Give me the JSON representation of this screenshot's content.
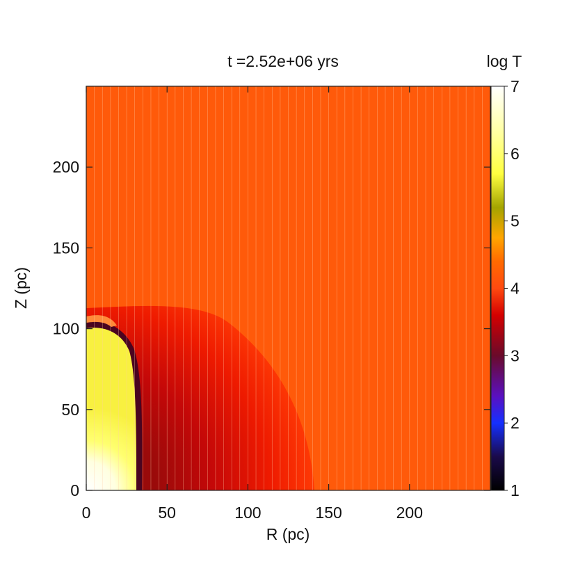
{
  "chart_data": {
    "type": "heatmap",
    "title": "t =2.52e+06 yrs",
    "xlabel": "R (pc)",
    "ylabel": "Z (pc)",
    "xlim": [
      0,
      250
    ],
    "ylim": [
      0,
      250
    ],
    "xticks": [
      0,
      50,
      100,
      150,
      200
    ],
    "yticks": [
      0,
      50,
      100,
      150,
      200
    ],
    "colorbar": {
      "label": "log T",
      "range": [
        1,
        7
      ],
      "ticks": [
        1,
        2,
        3,
        4,
        5,
        6,
        7
      ],
      "colormap": [
        {
          "v": 1.0,
          "color": "#000000"
        },
        {
          "v": 1.5,
          "color": "#1a0a4a"
        },
        {
          "v": 2.0,
          "color": "#1530ff"
        },
        {
          "v": 2.4,
          "color": "#5a10c0"
        },
        {
          "v": 3.0,
          "color": "#6a0a2a"
        },
        {
          "v": 3.6,
          "color": "#d40000"
        },
        {
          "v": 4.0,
          "color": "#ff4a10"
        },
        {
          "v": 4.4,
          "color": "#ff6a00"
        },
        {
          "v": 4.75,
          "color": "#ffa500"
        },
        {
          "v": 5.2,
          "color": "#a4a400"
        },
        {
          "v": 5.7,
          "color": "#ffff40"
        },
        {
          "v": 6.3,
          "color": "#ffffa0"
        },
        {
          "v": 7.0,
          "color": "#ffffff"
        }
      ]
    },
    "regions": [
      {
        "name": "ambient-medium",
        "logT": 4.0
      },
      {
        "name": "hot-bubble",
        "logT_range": [
          5.8,
          7.0
        ],
        "extent_R": 30,
        "extent_Z": 100
      },
      {
        "name": "cold-shell",
        "logT_range": [
          3.0,
          3.8
        ],
        "outer_radius": 140
      }
    ],
    "grid_lines_spacing_R": 5
  },
  "colors": {
    "ambient": "#ff5a0a",
    "grid_line": "#ffd0a8"
  }
}
